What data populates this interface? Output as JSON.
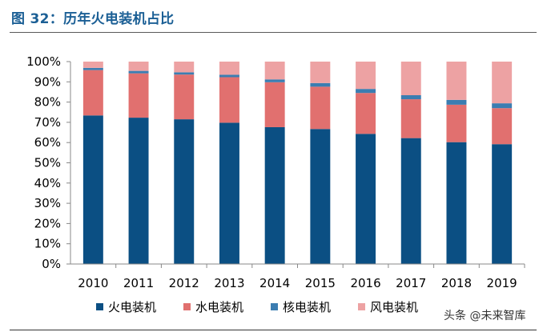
{
  "figure": {
    "title": "图 32：历年火电装机占比"
  },
  "watermark": "头条 @未来智库",
  "colors": {
    "title": "#1b5f95",
    "thermal": "#0b4f83",
    "hydro": "#e1706f",
    "nuclear": "#3b7db1",
    "wind": "#eda2a3"
  },
  "chart_data": {
    "type": "bar",
    "stacked": true,
    "categories": [
      "2010",
      "2011",
      "2012",
      "2013",
      "2014",
      "2015",
      "2016",
      "2017",
      "2018",
      "2019"
    ],
    "series": [
      {
        "name": "火电装机",
        "values": [
          73.4,
          72.3,
          71.5,
          69.8,
          67.6,
          66.7,
          64.3,
          62.2,
          60.2,
          59.2
        ]
      },
      {
        "name": "水电装机",
        "values": [
          22.4,
          21.9,
          22.1,
          22.5,
          22.2,
          20.9,
          20.2,
          19.2,
          18.5,
          17.8
        ]
      },
      {
        "name": "核电装机",
        "values": [
          1.1,
          1.2,
          1.1,
          1.2,
          1.4,
          1.8,
          2.0,
          2.0,
          2.4,
          2.4
        ]
      },
      {
        "name": "风电装机",
        "values": [
          3.1,
          4.6,
          5.3,
          6.5,
          8.8,
          10.6,
          13.5,
          16.6,
          18.9,
          20.6
        ]
      }
    ],
    "ylim": [
      0,
      100
    ],
    "yticks": [
      "0%",
      "10%",
      "20%",
      "30%",
      "40%",
      "50%",
      "60%",
      "70%",
      "80%",
      "90%",
      "100%"
    ],
    "grid": false,
    "legend_position": "bottom"
  }
}
